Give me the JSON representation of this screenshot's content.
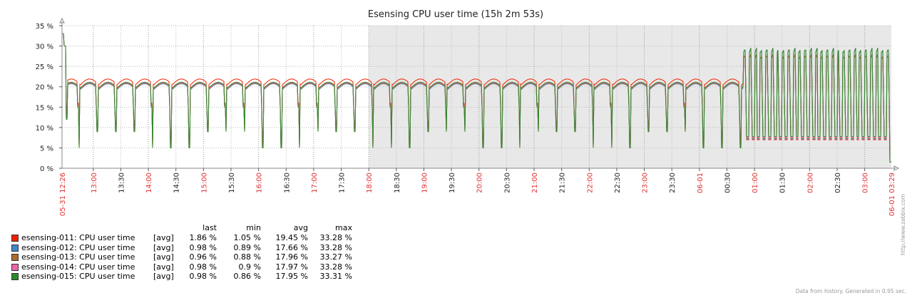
{
  "chart_data": {
    "type": "line",
    "title": "Esensing CPU user time (15h 2m 53s)",
    "y_unit": "%",
    "ylim": [
      0,
      35
    ],
    "y_ticks": [
      "0 %",
      "5 %",
      "10 %",
      "15 %",
      "20 %",
      "25 %",
      "30 %",
      "35 %"
    ],
    "x_range": [
      "05-31 12:26",
      "06-01 03:29"
    ],
    "x_start_label": "05-31 12:26",
    "x_end_label": "06-01 03:29",
    "x_ticks": [
      {
        "label": "13:00",
        "hour": true
      },
      {
        "label": "13:30",
        "hour": false
      },
      {
        "label": "14:00",
        "hour": true
      },
      {
        "label": "14:30",
        "hour": false
      },
      {
        "label": "15:00",
        "hour": true
      },
      {
        "label": "15:30",
        "hour": false
      },
      {
        "label": "16:00",
        "hour": true
      },
      {
        "label": "16:30",
        "hour": false
      },
      {
        "label": "17:00",
        "hour": true
      },
      {
        "label": "17:30",
        "hour": false
      },
      {
        "label": "18:00",
        "hour": true
      },
      {
        "label": "18:30",
        "hour": false
      },
      {
        "label": "19:00",
        "hour": true
      },
      {
        "label": "19:30",
        "hour": false
      },
      {
        "label": "20:00",
        "hour": true
      },
      {
        "label": "20:30",
        "hour": false
      },
      {
        "label": "21:00",
        "hour": true
      },
      {
        "label": "21:30",
        "hour": false
      },
      {
        "label": "22:00",
        "hour": true
      },
      {
        "label": "22:30",
        "hour": false
      },
      {
        "label": "23:00",
        "hour": true
      },
      {
        "label": "23:30",
        "hour": false
      },
      {
        "label": "06-01",
        "hour": true
      },
      {
        "label": "00:30",
        "hour": false
      },
      {
        "label": "01:00",
        "hour": true
      },
      {
        "label": "01:30",
        "hour": false
      },
      {
        "label": "02:00",
        "hour": true
      },
      {
        "label": "02:30",
        "hour": false
      },
      {
        "label": "03:00",
        "hour": true
      }
    ],
    "shaded_period": [
      "18:00",
      "06-01 03:29"
    ],
    "grid": true,
    "legend_position": "bottom-left",
    "legend_headers": {
      "last": "last",
      "min": "min",
      "avg": "avg",
      "max": "max"
    },
    "series": [
      {
        "name": "esensing-011: CPU user time",
        "agg": "[avg]",
        "color": "#ee2200",
        "last": "1.86 %",
        "min": "1.05 %",
        "avg": "19.45 %",
        "max": "33.28 %"
      },
      {
        "name": "esensing-012: CPU user time",
        "agg": "[avg]",
        "color": "#3f88c8",
        "last": "0.98 %",
        "min": "0.89 %",
        "avg": "17.66 %",
        "max": "33.28 %"
      },
      {
        "name": "esensing-013: CPU user time",
        "agg": "[avg]",
        "color": "#b06a2a",
        "last": "0.96 %",
        "min": "0.88 %",
        "avg": "17.96 %",
        "max": "33.27 %"
      },
      {
        "name": "esensing-014: CPU user time",
        "agg": "[avg]",
        "color": "#ee66aa",
        "last": "0.98 %",
        "min": "0.9 %",
        "avg": "17.97 %",
        "max": "33.28 %"
      },
      {
        "name": "esensing-015: CPU user time",
        "agg": "[avg]",
        "color": "#2a8a2a",
        "last": "0.98 %",
        "min": "0.86 %",
        "avg": "17.95 %",
        "max": "33.31 %"
      }
    ]
  },
  "footer_text": "Data from history. Generated in 0.95 sec.",
  "side_link": "http://www.zabbix.com"
}
